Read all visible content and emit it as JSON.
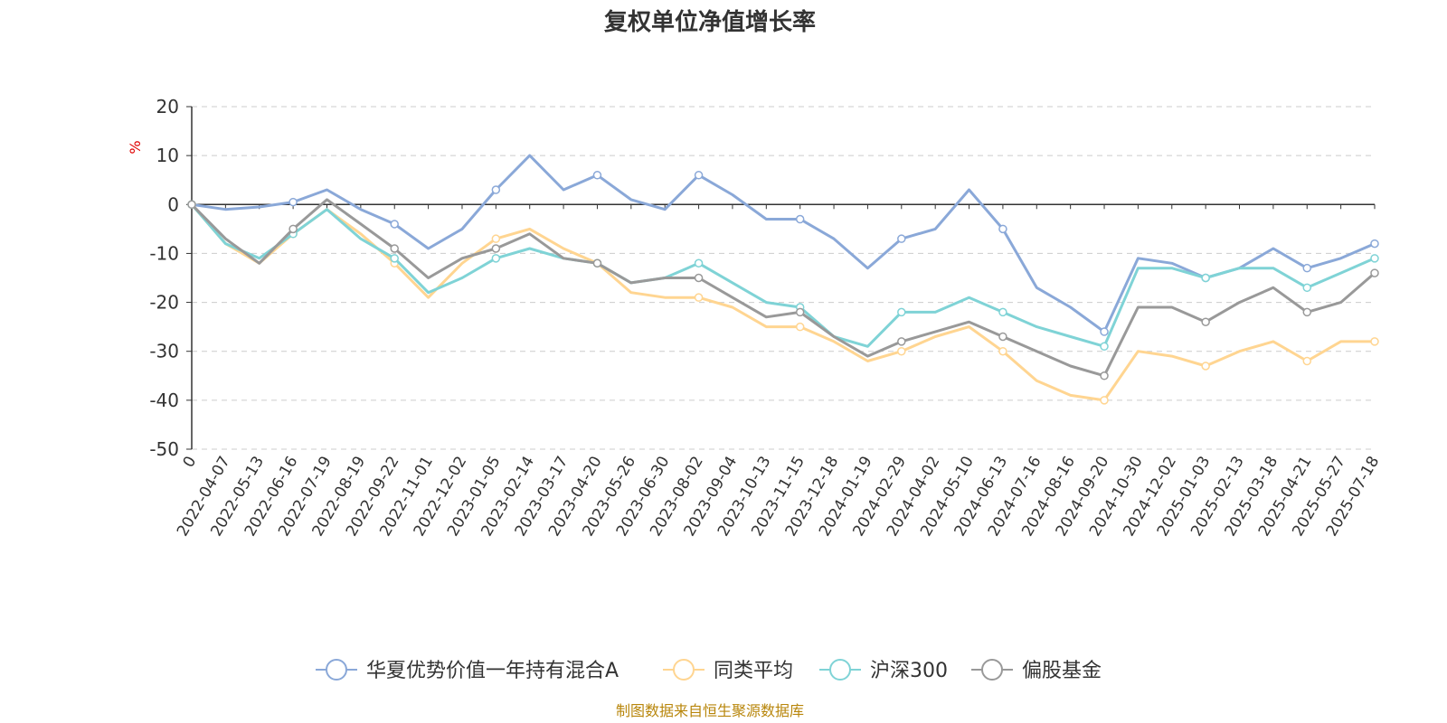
{
  "chart_data": {
    "type": "line",
    "title": "复权单位净值增长率",
    "ylabel": "%",
    "ylim": [
      -50,
      20
    ],
    "yticks": [
      "20",
      "10",
      "0",
      "-10",
      "-20",
      "-30",
      "-40",
      "-50"
    ],
    "grid": true,
    "legend_position": "bottom",
    "source": "制图数据来自恒生聚源数据库",
    "x": [
      "0",
      "2022-04-07",
      "2022-05-13",
      "2022-06-16",
      "2022-07-19",
      "2022-08-19",
      "2022-09-22",
      "2022-11-01",
      "2022-12-02",
      "2023-01-05",
      "2023-02-14",
      "2023-03-17",
      "2023-04-20",
      "2023-05-26",
      "2023-06-30",
      "2023-08-02",
      "2023-09-04",
      "2023-10-13",
      "2023-11-15",
      "2023-12-18",
      "2024-01-19",
      "2024-02-29",
      "2024-04-02",
      "2024-05-10",
      "2024-06-13",
      "2024-07-16",
      "2024-08-16",
      "2024-09-20",
      "2024-10-30",
      "2024-12-02",
      "2025-01-03",
      "2025-02-13",
      "2025-03-18",
      "2025-04-21",
      "2025-05-27",
      "2025-07-18"
    ],
    "series": [
      {
        "name": "华夏优势价值一年持有混合A",
        "color": "#8aa8d8",
        "values": [
          0,
          -1,
          -0.5,
          0.5,
          3,
          -1,
          -4,
          -9,
          -5,
          3,
          10,
          3,
          6,
          1,
          -1,
          6,
          2,
          -3,
          -3,
          -7,
          -13,
          -7,
          -5,
          3,
          -5,
          -17,
          -21,
          -26,
          -11,
          -12,
          -15,
          -13,
          -9,
          -13,
          -11,
          -8
        ]
      },
      {
        "name": "同类平均",
        "color": "#ffd591",
        "values": [
          0,
          -8,
          -12,
          -6,
          -1,
          -6,
          -12,
          -19,
          -12,
          -7,
          -5,
          -9,
          -12,
          -18,
          -19,
          -19,
          -21,
          -25,
          -25,
          -28,
          -32,
          -30,
          -27,
          -25,
          -30,
          -36,
          -39,
          -40,
          -30,
          -31,
          -33,
          -30,
          -28,
          -32,
          -28,
          -28
        ]
      },
      {
        "name": "沪深300",
        "color": "#7fd3d6",
        "values": [
          0,
          -8,
          -11,
          -6,
          -1,
          -7,
          -11,
          -18,
          -15,
          -11,
          -9,
          -11,
          -12,
          -16,
          -15,
          -12,
          -16,
          -20,
          -21,
          -27,
          -29,
          -22,
          -22,
          -19,
          -22,
          -25,
          -27,
          -29,
          -13,
          -13,
          -15,
          -13,
          -13,
          -17,
          -14,
          -11
        ]
      },
      {
        "name": "偏股基金",
        "color": "#999999",
        "values": [
          0,
          -7,
          -12,
          -5,
          1,
          -4,
          -9,
          -15,
          -11,
          -9,
          -6,
          -11,
          -12,
          -16,
          -15,
          -15,
          -19,
          -23,
          -22,
          -27,
          -31,
          -28,
          -26,
          -24,
          -27,
          -30,
          -33,
          -35,
          -21,
          -21,
          -24,
          -20,
          -17,
          -22,
          -20,
          -14
        ]
      }
    ]
  }
}
